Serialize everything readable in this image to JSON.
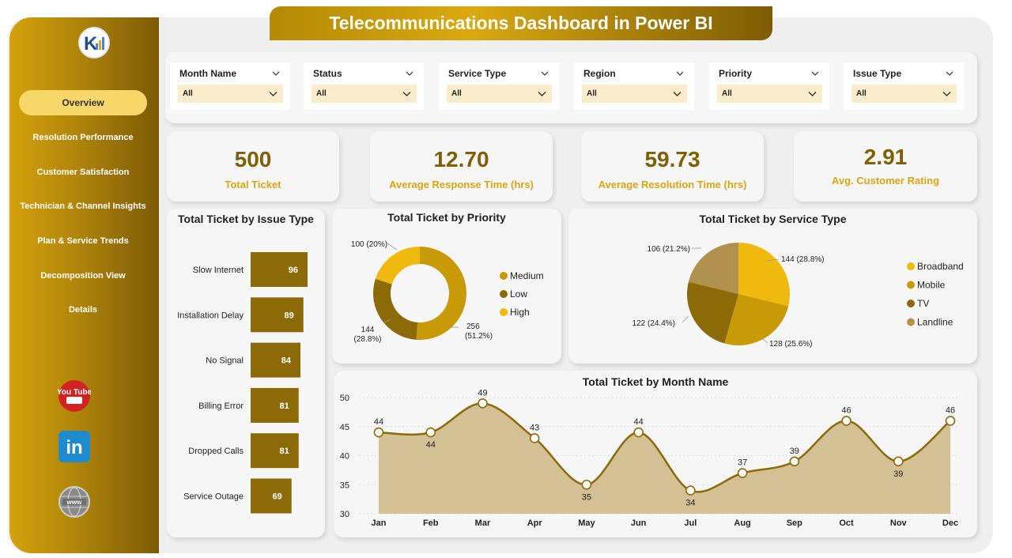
{
  "title": "Telecommunications Dashboard in Power BI",
  "nav": [
    {
      "label": "Overview",
      "active": true
    },
    {
      "label": "Resolution Performance"
    },
    {
      "label": "Customer Satisfaction"
    },
    {
      "label": "Technician & Channel Insights"
    },
    {
      "label": "Plan & Service Trends"
    },
    {
      "label": "Decomposition View"
    },
    {
      "label": "Details"
    }
  ],
  "social": {
    "youtube_label": "You Tube",
    "linkedin_label": "in",
    "web_label": "www"
  },
  "filters": [
    {
      "label": "Month Name",
      "value": "All"
    },
    {
      "label": "Status",
      "value": "All"
    },
    {
      "label": "Service Type",
      "value": "All"
    },
    {
      "label": "Region",
      "value": "All"
    },
    {
      "label": "Priority",
      "value": "All"
    },
    {
      "label": "Issue Type",
      "value": "All"
    }
  ],
  "kpis": [
    {
      "value": "500",
      "label": "Total Ticket"
    },
    {
      "value": "12.70",
      "label": "Average Response Time (hrs)"
    },
    {
      "value": "59.73",
      "label": "Average Resolution Time (hrs)"
    },
    {
      "value": "2.91",
      "label": "Avg. Customer Rating"
    }
  ],
  "colors": {
    "dark_gold": "#7f5f06",
    "gold": "#c89a08",
    "yellow": "#f0b90e",
    "tan": "#b0924e",
    "area_fill": "#d3c095"
  },
  "chart_data": [
    {
      "type": "bar",
      "title": "Total Ticket by Issue Type",
      "orientation": "horizontal",
      "categories": [
        "Slow Internet",
        "Installation Delay",
        "No Signal",
        "Billing Error",
        "Dropped Calls",
        "Service Outage"
      ],
      "values": [
        96,
        89,
        84,
        81,
        81,
        69
      ]
    },
    {
      "type": "pie",
      "variant": "donut",
      "title": "Total Ticket by Priority",
      "labels": [
        "Medium",
        "Low",
        "High"
      ],
      "values": [
        256,
        144,
        100
      ],
      "data_labels": [
        "256 (51.2%)",
        "144 (28.8%)",
        "100 (20%)"
      ],
      "colors": [
        "#c89a08",
        "#8b6a07",
        "#f0b90e"
      ],
      "legend": "right"
    },
    {
      "type": "pie",
      "title": "Total Ticket by Service Type",
      "labels": [
        "Broadband",
        "Mobile",
        "TV",
        "Landline"
      ],
      "values": [
        144,
        128,
        122,
        106
      ],
      "data_labels": [
        "144 (28.8%)",
        "128 (25.6%)",
        "122 (24.4%)",
        "106 (21.2%)"
      ],
      "colors": [
        "#f0b90e",
        "#c89a08",
        "#8b6a07",
        "#b0924e"
      ],
      "legend": "right"
    },
    {
      "type": "area",
      "title": "Total Ticket by Month Name",
      "x": [
        "Jan",
        "Feb",
        "Mar",
        "Apr",
        "May",
        "Jun",
        "Jul",
        "Aug",
        "Sep",
        "Oct",
        "Nov",
        "Dec"
      ],
      "values": [
        44,
        44,
        49,
        43,
        35,
        44,
        34,
        37,
        39,
        46,
        39,
        46
      ],
      "ylim": [
        30,
        50
      ],
      "yticks": [
        30,
        35,
        40,
        45,
        50
      ],
      "grid": true
    }
  ]
}
